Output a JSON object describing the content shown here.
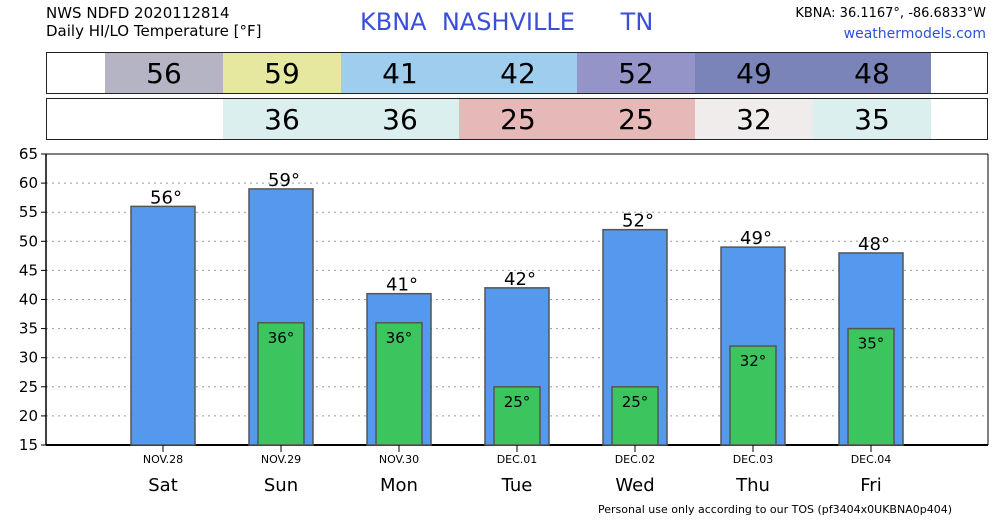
{
  "header": {
    "line1": "NWS NDFD 2020112814",
    "line2": "Daily HI/LO Temperature [°F]",
    "station": "KBNA  NASHVILLE      TN",
    "coords": "KBNA: 36.1167°, -86.6833°W",
    "site": "weathermodels.com"
  },
  "hi_strip": [
    {
      "value": "56",
      "color": "#b4b4c4"
    },
    {
      "value": "59",
      "color": "#e6e8a0"
    },
    {
      "value": "41",
      "color": "#9fcdee"
    },
    {
      "value": "42",
      "color": "#9fcdee"
    },
    {
      "value": "52",
      "color": "#9494c8"
    },
    {
      "value": "49",
      "color": "#7a84b8"
    },
    {
      "value": "48",
      "color": "#7a84b8"
    }
  ],
  "lo_strip": [
    {
      "value": "",
      "color": "#ffffff"
    },
    {
      "value": "36",
      "color": "#dcefef"
    },
    {
      "value": "36",
      "color": "#dcefef"
    },
    {
      "value": "25",
      "color": "#e6b8b8"
    },
    {
      "value": "25",
      "color": "#e6b8b8"
    },
    {
      "value": "32",
      "color": "#f0ecec"
    },
    {
      "value": "35",
      "color": "#dcefef"
    }
  ],
  "chart_data": {
    "type": "bar",
    "dates": [
      "NOV.28",
      "NOV.29",
      "NOV.30",
      "DEC.01",
      "DEC.02",
      "DEC.03",
      "DEC.04"
    ],
    "days": [
      "Sat",
      "Sun",
      "Mon",
      "Tue",
      "Wed",
      "Thu",
      "Fri"
    ],
    "series": [
      {
        "values": [
          56,
          59,
          41,
          42,
          52,
          49,
          48
        ],
        "color": "#5599ee"
      },
      {
        "values": [
          null,
          36,
          36,
          25,
          25,
          32,
          35
        ],
        "color": "#3cc45e"
      }
    ],
    "hi_labels": [
      "56°",
      "59°",
      "41°",
      "42°",
      "52°",
      "49°",
      "48°"
    ],
    "lo_labels": [
      "",
      "36°",
      "36°",
      "25°",
      "25°",
      "32°",
      "35°"
    ],
    "ylim": [
      15,
      65
    ],
    "yticks": [
      15,
      20,
      25,
      30,
      35,
      40,
      45,
      50,
      55,
      60,
      65
    ],
    "grid": true
  },
  "footer": "Personal use only according to our TOS (pf3404x0UKBNA0p404)"
}
